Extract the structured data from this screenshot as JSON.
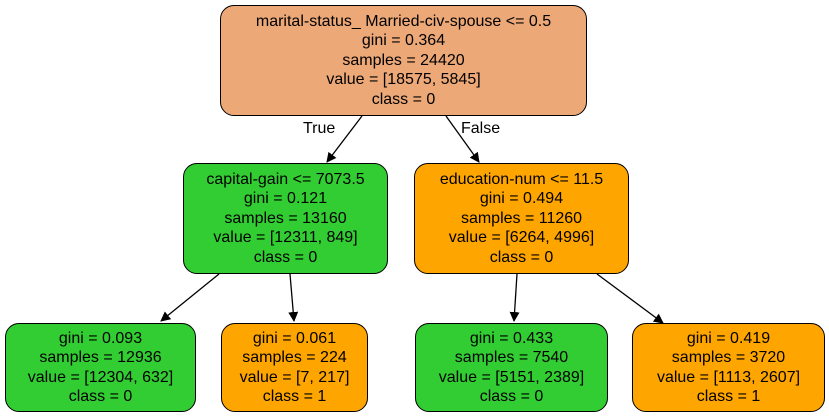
{
  "colors": {
    "root": "#eda878",
    "class0": "#32cd32",
    "class1": "#ffa500",
    "border": "#000000"
  },
  "edge_labels": {
    "true": "True",
    "false": "False"
  },
  "nodes": {
    "root": {
      "split": "marital-status_ Married-civ-spouse <= 0.5",
      "gini": "gini = 0.364",
      "samples": "samples = 24420",
      "value": "value = [18575, 5845]",
      "class": "class = 0"
    },
    "left": {
      "split": "capital-gain <= 7073.5",
      "gini": "gini = 0.121",
      "samples": "samples = 13160",
      "value": "value = [12311, 849]",
      "class": "class = 0"
    },
    "right": {
      "split": "education-num <= 11.5",
      "gini": "gini = 0.494",
      "samples": "samples = 11260",
      "value": "value = [6264, 4996]",
      "class": "class = 0"
    },
    "leaf1": {
      "gini": "gini = 0.093",
      "samples": "samples = 12936",
      "value": "value = [12304, 632]",
      "class": "class = 0"
    },
    "leaf2": {
      "gini": "gini = 0.061",
      "samples": "samples = 224",
      "value": "value = [7, 217]",
      "class": "class = 1"
    },
    "leaf3": {
      "gini": "gini = 0.433",
      "samples": "samples = 7540",
      "value": "value = [5151, 2389]",
      "class": "class = 0"
    },
    "leaf4": {
      "gini": "gini = 0.419",
      "samples": "samples = 3720",
      "value": "value = [1113, 2607]",
      "class": "class = 1"
    }
  }
}
